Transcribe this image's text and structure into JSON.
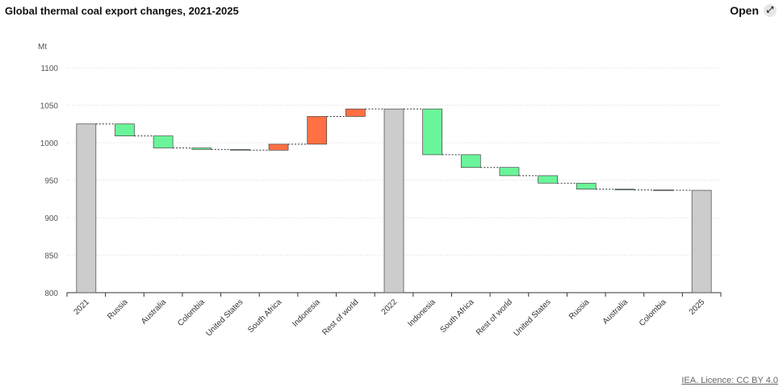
{
  "chart_data": {
    "type": "waterfall",
    "title": "Global thermal coal export changes, 2021-2025",
    "ylabel": "Mt",
    "categories": [
      "2021",
      "Russia",
      "Australia",
      "Colombia",
      "United States",
      "South Africa",
      "Indonesia",
      "Rest of world",
      "2022",
      "Indonesia",
      "South Africa",
      "Rest of world",
      "United States",
      "Russia",
      "Australia",
      "Colombia",
      "2025"
    ],
    "values": [
      1025,
      -16,
      -16,
      -2,
      -1,
      8,
      37,
      10,
      1045,
      -61,
      -17,
      -11,
      -10,
      -8,
      -1,
      -0.5,
      936.5
    ],
    "colors": {
      "total": "#cccccc",
      "increase": "#ff7043",
      "decrease": "#6af59a"
    },
    "ylim": [
      800,
      1100
    ],
    "yticks": [
      800,
      850,
      900,
      950,
      1000,
      1050,
      1100
    ],
    "grid": true
  },
  "header": {
    "open": "Open"
  },
  "footer": {
    "source": "IEA. Licence: CC BY 4.0"
  }
}
